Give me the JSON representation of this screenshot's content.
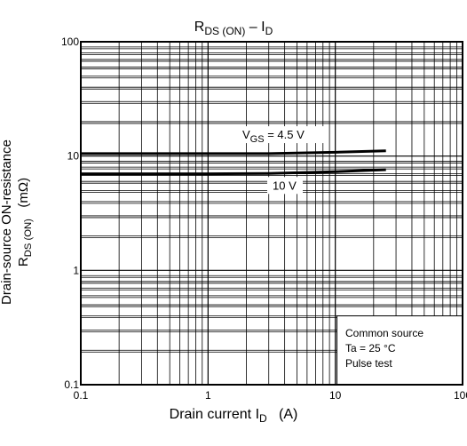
{
  "chart_data": {
    "type": "line",
    "title_main": "R",
    "title_sub": "DS (ON)",
    "title_rest": " – I",
    "title_sub2": "D",
    "xlabel_main": "Drain current   I",
    "xlabel_sub": "D",
    "xlabel_unit": "(A)",
    "ylabel_line1": "Drain-source ON-resistance",
    "ylabel_line2_main": "R",
    "ylabel_line2_sub": "DS (ON)",
    "ylabel_line2_unit": "(mΩ)",
    "x_scale": "log",
    "y_scale": "log",
    "xlim": [
      0.1,
      100
    ],
    "ylim": [
      0.1,
      100
    ],
    "x_ticks": [
      "0.1",
      "1",
      "10",
      "100"
    ],
    "y_ticks": [
      "0.1",
      "1",
      "10",
      "100"
    ],
    "grid": true,
    "series": [
      {
        "name_main": "V",
        "name_sub": "GS",
        "name_rest": " = 4.5 V",
        "x": [
          0.1,
          1,
          3,
          10,
          25
        ],
        "y": [
          10.5,
          10.5,
          10.5,
          10.8,
          11.1
        ]
      },
      {
        "name": "10 V",
        "x": [
          0.1,
          1,
          3,
          10,
          25
        ],
        "y": [
          7.0,
          7.0,
          7.05,
          7.3,
          7.6
        ]
      }
    ],
    "annotation": [
      "Common source",
      "Ta = 25  °C",
      "Pulse test"
    ]
  }
}
